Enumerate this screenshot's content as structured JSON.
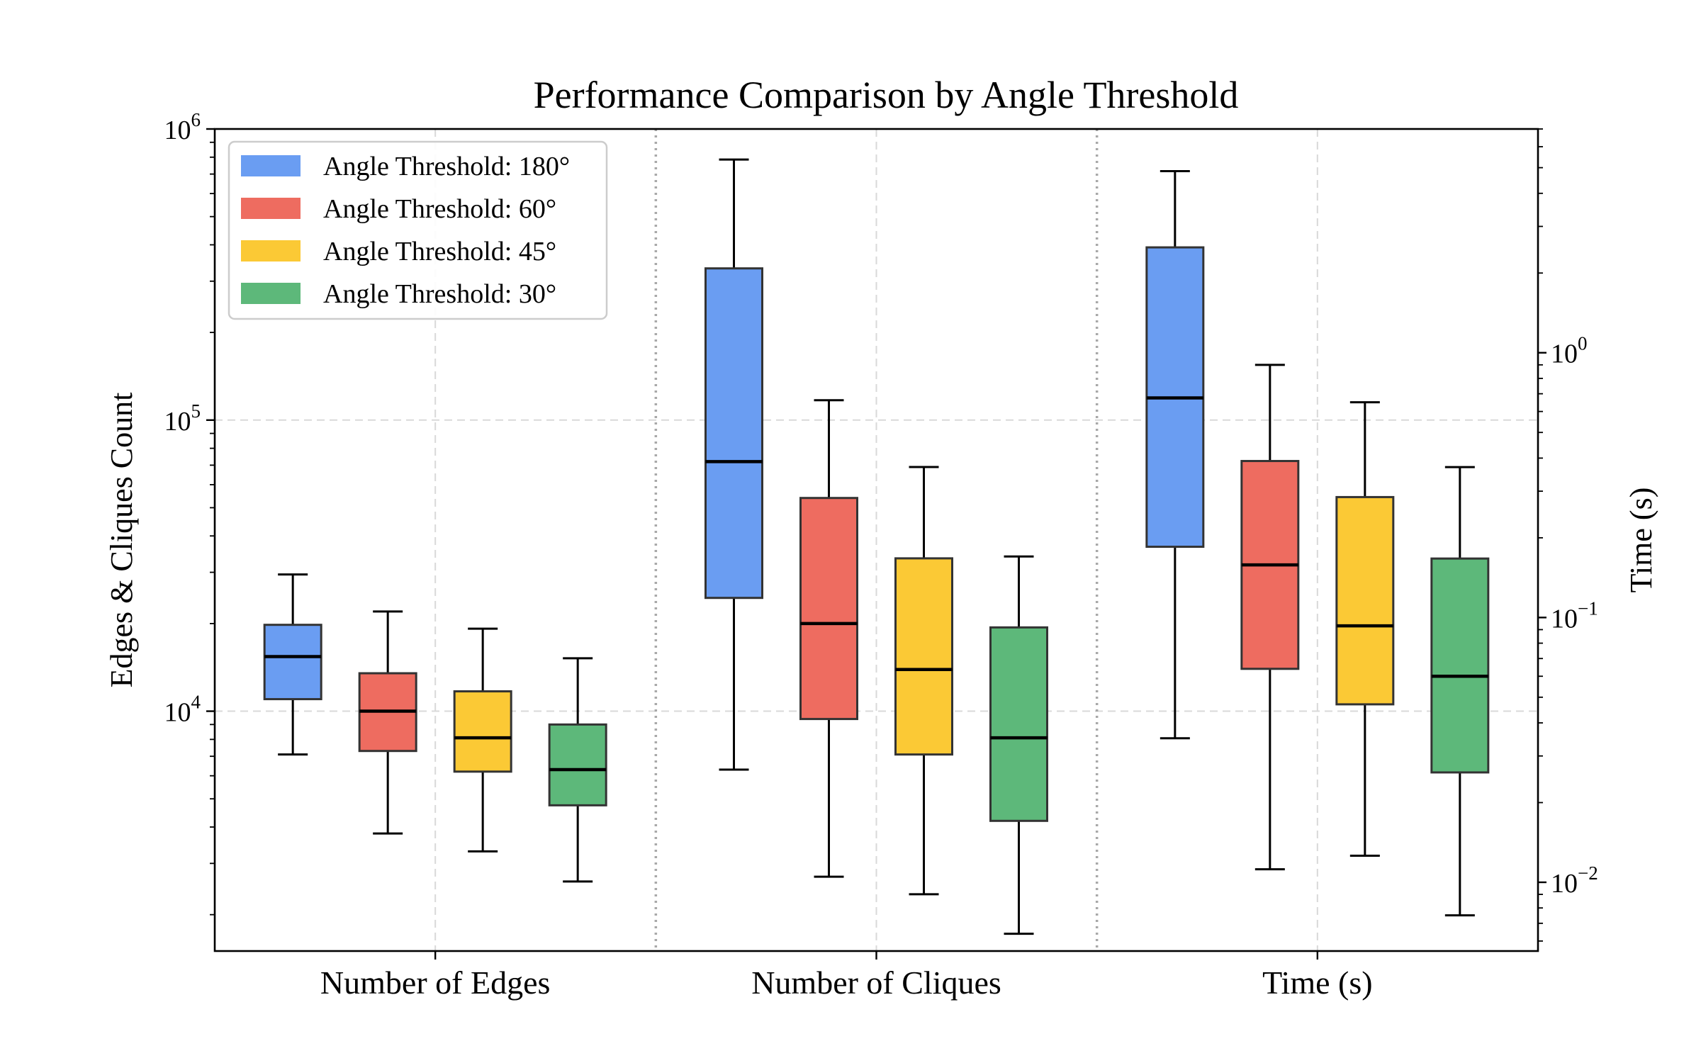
{
  "chart_data": {
    "type": "box",
    "title": "Performance Comparison by Angle Threshold",
    "ylabel_left": "Edges & Cliques Count",
    "ylabel_right": "Time (s)",
    "yscale": "log",
    "ylim_left": [
      1500,
      1000000
    ],
    "ylim_right": [
      0.0055,
      7.0
    ],
    "left_ticks": [
      {
        "value": 10000,
        "base": "10",
        "exp": "4"
      },
      {
        "value": 100000,
        "base": "10",
        "exp": "5"
      },
      {
        "value": 1000000,
        "base": "10",
        "exp": "6"
      }
    ],
    "right_ticks": [
      {
        "value": 0.01,
        "base": "10",
        "exp": "−2"
      },
      {
        "value": 0.1,
        "base": "10",
        "exp": "−1"
      },
      {
        "value": 1,
        "base": "10",
        "exp": "0"
      }
    ],
    "groups": [
      {
        "label": "Number of Edges",
        "axis": "left"
      },
      {
        "label": "Number of Cliques",
        "axis": "left"
      },
      {
        "label": "Time (s)",
        "axis": "right"
      }
    ],
    "series": [
      {
        "name": "Angle Threshold: 180°",
        "color": "#6a9df2",
        "boxes": [
          {
            "whislo": 7100,
            "q1": 11000,
            "med": 15400,
            "q3": 19800,
            "whishi": 29500
          },
          {
            "whislo": 6300,
            "q1": 24500,
            "med": 72000,
            "q3": 332000,
            "whishi": 785000
          },
          {
            "whislo": 0.035,
            "q1": 0.185,
            "med": 0.675,
            "q3": 2.5,
            "whishi": 4.85
          }
        ]
      },
      {
        "name": "Angle Threshold: 60°",
        "color": "#ee6c60",
        "boxes": [
          {
            "whislo": 3800,
            "q1": 7300,
            "med": 10000,
            "q3": 13500,
            "whishi": 22000
          },
          {
            "whislo": 2700,
            "q1": 9400,
            "med": 20000,
            "q3": 54000,
            "whishi": 117000
          },
          {
            "whislo": 0.0112,
            "q1": 0.064,
            "med": 0.158,
            "q3": 0.39,
            "whishi": 0.9
          }
        ]
      },
      {
        "name": "Angle Threshold: 45°",
        "color": "#fbc935",
        "boxes": [
          {
            "whislo": 3300,
            "q1": 6200,
            "med": 8100,
            "q3": 11700,
            "whishi": 19200
          },
          {
            "whislo": 2350,
            "q1": 7100,
            "med": 13900,
            "q3": 33500,
            "whishi": 69000
          },
          {
            "whislo": 0.0126,
            "q1": 0.047,
            "med": 0.093,
            "q3": 0.285,
            "whishi": 0.65
          }
        ]
      },
      {
        "name": "Angle Threshold: 30°",
        "color": "#5db87a",
        "boxes": [
          {
            "whislo": 2600,
            "q1": 4750,
            "med": 6300,
            "q3": 9000,
            "whishi": 15200
          },
          {
            "whislo": 1720,
            "q1": 4200,
            "med": 8100,
            "q3": 19400,
            "whishi": 34000
          },
          {
            "whislo": 0.0075,
            "q1": 0.026,
            "med": 0.06,
            "q3": 0.167,
            "whishi": 0.37
          }
        ]
      }
    ],
    "legend_position": "top-left",
    "grid": true
  }
}
